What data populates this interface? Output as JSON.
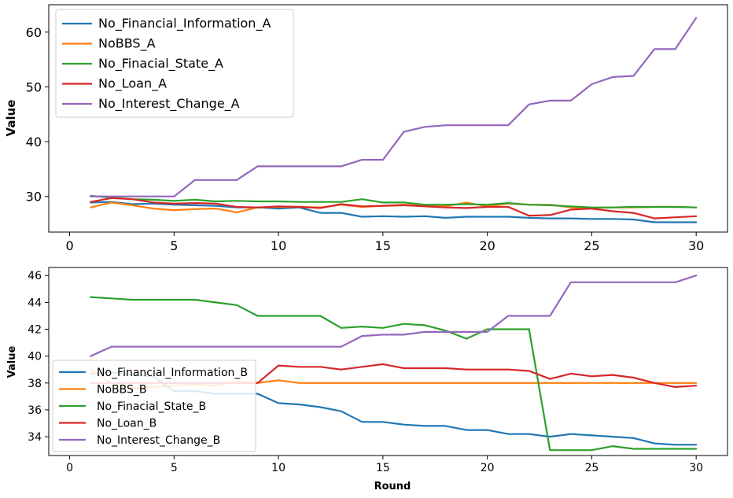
{
  "chart_data": [
    {
      "type": "line",
      "title": "",
      "xlabel": "",
      "ylabel": "Value",
      "xlim": [
        -1.0,
        31.5
      ],
      "ylim": [
        23.5,
        65.0
      ],
      "xticks": [
        0,
        5,
        10,
        15,
        20,
        25,
        30
      ],
      "yticks": [
        30,
        40,
        50,
        60
      ],
      "legend_position": "top-left",
      "x": [
        1,
        2,
        3,
        4,
        5,
        6,
        7,
        8,
        9,
        10,
        11,
        12,
        13,
        14,
        15,
        16,
        17,
        18,
        19,
        20,
        21,
        22,
        23,
        24,
        25,
        26,
        27,
        28,
        29,
        30
      ],
      "series": [
        {
          "name": "No_Financial_Information_A",
          "color": "#1f77b4",
          "values": [
            28.9,
            29.0,
            28.6,
            28.7,
            28.5,
            28.4,
            28.3,
            28.0,
            28.0,
            27.8,
            28.0,
            27.0,
            27.0,
            26.3,
            26.4,
            26.3,
            26.4,
            26.1,
            26.3,
            26.3,
            26.3,
            26.1,
            26.0,
            26.0,
            25.9,
            25.9,
            25.8,
            25.3,
            25.3,
            25.3
          ]
        },
        {
          "name": "NoBBS_A",
          "color": "#ff7f0e",
          "values": [
            28.0,
            28.9,
            28.4,
            27.8,
            27.5,
            27.7,
            27.8,
            27.1,
            28.0,
            28.1,
            28.1,
            28.0,
            28.5,
            28.1,
            28.3,
            28.5,
            28.3,
            28.2,
            28.9,
            28.2,
            28.7,
            28.5,
            28.5,
            28.0,
            27.9,
            28.0,
            28.0,
            28.1,
            28.1,
            28.0
          ]
        },
        {
          "name": "No_Finacial_State_A",
          "color": "#2ca02c",
          "values": [
            30.1,
            29.8,
            29.5,
            29.4,
            29.2,
            29.4,
            29.1,
            29.2,
            29.1,
            29.1,
            29.0,
            29.0,
            29.0,
            29.5,
            28.9,
            28.9,
            28.5,
            28.5,
            28.6,
            28.5,
            28.8,
            28.5,
            28.4,
            28.2,
            28.0,
            28.0,
            28.1,
            28.1,
            28.1,
            28.0
          ]
        },
        {
          "name": "No_Loan_A",
          "color": "#d62728",
          "values": [
            29.0,
            29.7,
            29.5,
            28.9,
            28.7,
            28.8,
            28.7,
            28.1,
            28.0,
            28.2,
            28.1,
            27.9,
            28.6,
            28.2,
            28.3,
            28.4,
            28.2,
            28.0,
            27.9,
            28.1,
            28.1,
            26.5,
            26.6,
            27.6,
            27.8,
            27.3,
            27.0,
            26.0,
            26.2,
            26.4
          ]
        },
        {
          "name": "No_Interest_Change_A",
          "color": "#9467bd",
          "values": [
            30.0,
            30.0,
            30.0,
            30.0,
            30.0,
            33.0,
            33.0,
            33.0,
            35.5,
            35.5,
            35.5,
            35.5,
            35.5,
            36.7,
            36.7,
            41.8,
            42.7,
            43.0,
            43.0,
            43.0,
            43.0,
            46.8,
            47.5,
            47.5,
            50.5,
            51.8,
            52.0,
            56.9,
            56.9,
            62.6
          ]
        }
      ]
    },
    {
      "type": "line",
      "title": "",
      "xlabel": "Round",
      "ylabel": "Value",
      "xlim": [
        -1.0,
        31.5
      ],
      "ylim": [
        32.6,
        46.6
      ],
      "xticks": [
        0,
        5,
        10,
        15,
        20,
        25,
        30
      ],
      "yticks": [
        34,
        36,
        38,
        40,
        42,
        44,
        46
      ],
      "legend_position": "bottom-left",
      "x": [
        1,
        2,
        3,
        4,
        5,
        6,
        7,
        8,
        9,
        10,
        11,
        12,
        13,
        14,
        15,
        16,
        17,
        18,
        19,
        20,
        21,
        22,
        23,
        24,
        25,
        26,
        27,
        28,
        29,
        30
      ],
      "series": [
        {
          "name": "No_Financial_Information_B",
          "color": "#1f77b4",
          "values": [
            38.7,
            38.8,
            38.6,
            38.5,
            37.4,
            37.4,
            37.2,
            37.2,
            37.2,
            36.5,
            36.4,
            36.2,
            35.9,
            35.1,
            35.1,
            34.9,
            34.8,
            34.8,
            34.5,
            34.5,
            34.2,
            34.2,
            34.0,
            34.2,
            34.1,
            34.0,
            33.9,
            33.5,
            33.4,
            33.4
          ]
        },
        {
          "name": "NoBBS_B",
          "color": "#ff7f0e",
          "values": [
            39.0,
            38.0,
            37.6,
            37.7,
            37.8,
            37.9,
            37.8,
            38.1,
            38.0,
            38.2,
            38.0,
            38.0,
            38.0,
            38.0,
            38.0,
            38.0,
            38.0,
            38.0,
            38.0,
            38.0,
            38.0,
            38.0,
            38.0,
            38.0,
            38.0,
            38.0,
            38.0,
            38.0,
            38.0,
            38.0
          ]
        },
        {
          "name": "No_Finacial_State_B",
          "color": "#2ca02c",
          "values": [
            44.4,
            44.3,
            44.2,
            44.2,
            44.2,
            44.2,
            44.0,
            43.8,
            43.0,
            43.0,
            43.0,
            43.0,
            42.1,
            42.2,
            42.1,
            42.4,
            42.3,
            41.9,
            41.3,
            42.0,
            42.0,
            42.0,
            33.0,
            33.0,
            33.0,
            33.3,
            33.1,
            33.1,
            33.1,
            33.1
          ]
        },
        {
          "name": "No_Loan_B",
          "color": "#d62728",
          "values": [
            38.0,
            38.0,
            38.0,
            38.0,
            38.0,
            38.0,
            38.0,
            38.0,
            38.0,
            39.3,
            39.2,
            39.2,
            39.0,
            39.2,
            39.4,
            39.1,
            39.1,
            39.1,
            39.0,
            39.0,
            39.0,
            38.9,
            38.3,
            38.7,
            38.5,
            38.6,
            38.4,
            38.0,
            37.7,
            37.8
          ]
        },
        {
          "name": "No_Interest_Change_B",
          "color": "#9467bd",
          "values": [
            40.0,
            40.7,
            40.7,
            40.7,
            40.7,
            40.7,
            40.7,
            40.7,
            40.7,
            40.7,
            40.7,
            40.7,
            40.7,
            41.5,
            41.6,
            41.6,
            41.8,
            41.8,
            41.8,
            41.8,
            43.0,
            43.0,
            43.0,
            45.5,
            45.5,
            45.5,
            45.5,
            45.5,
            45.5,
            46.0
          ]
        }
      ]
    }
  ]
}
